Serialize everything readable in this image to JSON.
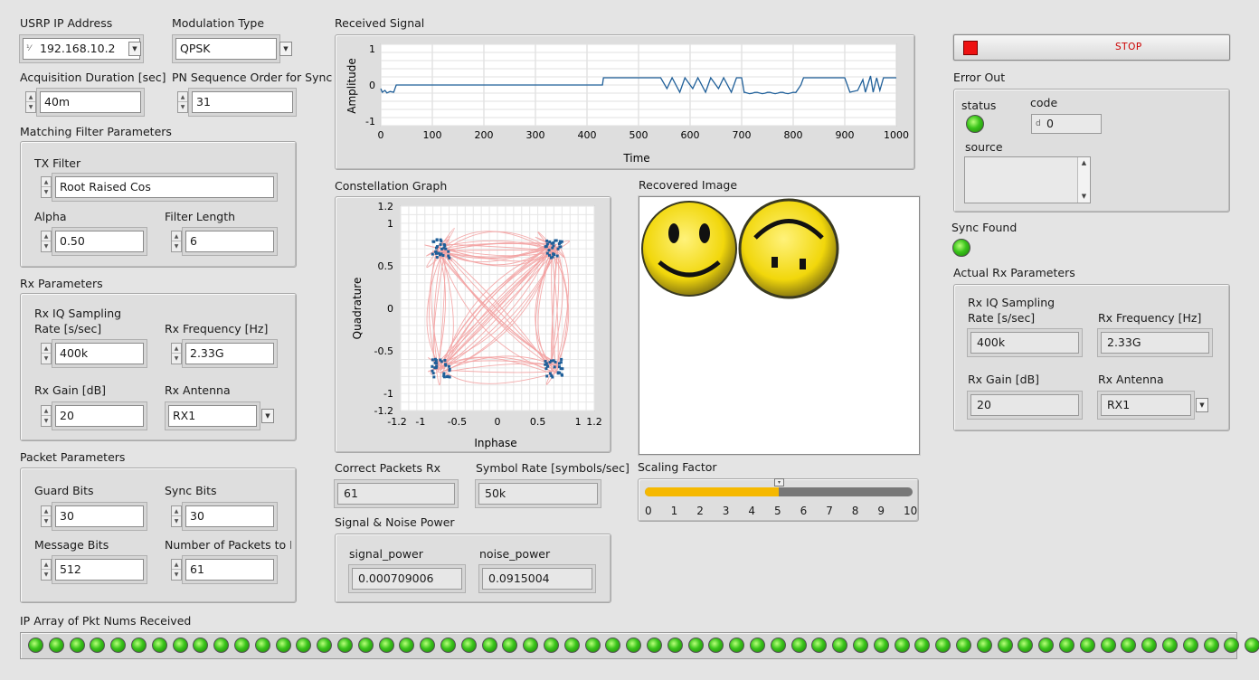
{
  "usrp": {
    "label": "USRP IP Address",
    "value": "192.168.10.2"
  },
  "modulation": {
    "label": "Modulation Type",
    "value": "QPSK"
  },
  "acq": {
    "label": "Acquisition Duration [sec]",
    "value": "40m"
  },
  "pn": {
    "label": "PN Sequence Order for Sync",
    "value": "31"
  },
  "mfp": {
    "label": "Matching Filter Parameters",
    "tx_label": "TX Filter",
    "tx_value": "Root Raised Cos",
    "alpha_label": "Alpha",
    "alpha_value": "0.50",
    "flen_label": "Filter Length",
    "flen_value": "6"
  },
  "rxp": {
    "label": "Rx Parameters",
    "rate_label1": "Rx IQ Sampling",
    "rate_label2": "Rate [s/sec]",
    "rate_value": "400k",
    "freq_label": "Rx Frequency [Hz]",
    "freq_value": "2.33G",
    "gain_label": "Rx Gain [dB]",
    "gain_value": "20",
    "ant_label": "Rx Antenna",
    "ant_value": "RX1"
  },
  "pkt": {
    "label": "Packet Parameters",
    "guard_label": "Guard Bits",
    "guard_value": "30",
    "sync_label": "Sync Bits",
    "sync_value": "30",
    "msg_label": "Message Bits",
    "msg_value": "512",
    "num_label": "Number of Packets to E",
    "num_value": "61"
  },
  "received": {
    "title": "Received Signal",
    "ylabel": "Amplitude",
    "xlabel": "Time",
    "yticks": [
      "1",
      "0",
      "-1"
    ],
    "xticks": [
      "0",
      "100",
      "200",
      "300",
      "400",
      "500",
      "600",
      "700",
      "800",
      "900",
      "1000"
    ]
  },
  "constellation": {
    "title": "Constellation Graph",
    "ylabel": "Quadrature",
    "xlabel": "Inphase",
    "yticks": [
      "1.2",
      "1",
      "0.5",
      "0",
      "-0.5",
      "-1",
      "-1.2"
    ],
    "xticks": [
      "-1.2",
      "-1",
      "-0.5",
      "0",
      "0.5",
      "1",
      "1.2"
    ]
  },
  "recovered": {
    "title": "Recovered Image"
  },
  "correct": {
    "label": "Correct Packets Rx",
    "value": "61"
  },
  "symrate": {
    "label": "Symbol Rate [symbols/sec]",
    "value": "50k"
  },
  "snp": {
    "label": "Signal & Noise Power",
    "sig_label": "signal_power",
    "sig_value": "0.000709006",
    "noise_label": "noise_power",
    "noise_value": "0.0915004"
  },
  "scaling": {
    "label": "Scaling Factor",
    "value": 5,
    "min": 0,
    "max": 10,
    "ticks": [
      "0",
      "1",
      "2",
      "3",
      "4",
      "5",
      "6",
      "7",
      "8",
      "9",
      "10"
    ]
  },
  "stop": {
    "label": "STOP"
  },
  "error": {
    "label": "Error Out",
    "status_label": "status",
    "code_label": "code",
    "code_value": "0",
    "source_label": "source"
  },
  "sync": {
    "label": "Sync Found"
  },
  "actual": {
    "label": "Actual Rx Parameters",
    "rate_label1": "Rx IQ Sampling",
    "rate_label2": "Rate [s/sec]",
    "rate_value": "400k",
    "freq_label": "Rx Frequency [Hz]",
    "freq_value": "2.33G",
    "gain_label": "Rx Gain [dB]",
    "gain_value": "20",
    "ant_label": "Rx Antenna",
    "ant_value": "RX1"
  },
  "pktarr": {
    "label": "IP Array of Pkt Nums Received",
    "count": 60
  },
  "colors": {
    "trace": "#1f5f99",
    "constellation_trace": "#f3a3a3",
    "constellation_points": "#1f5f99",
    "slider_fill": "#f5b800",
    "stop_red": "#ee1111",
    "led_green": "#39c41a"
  }
}
